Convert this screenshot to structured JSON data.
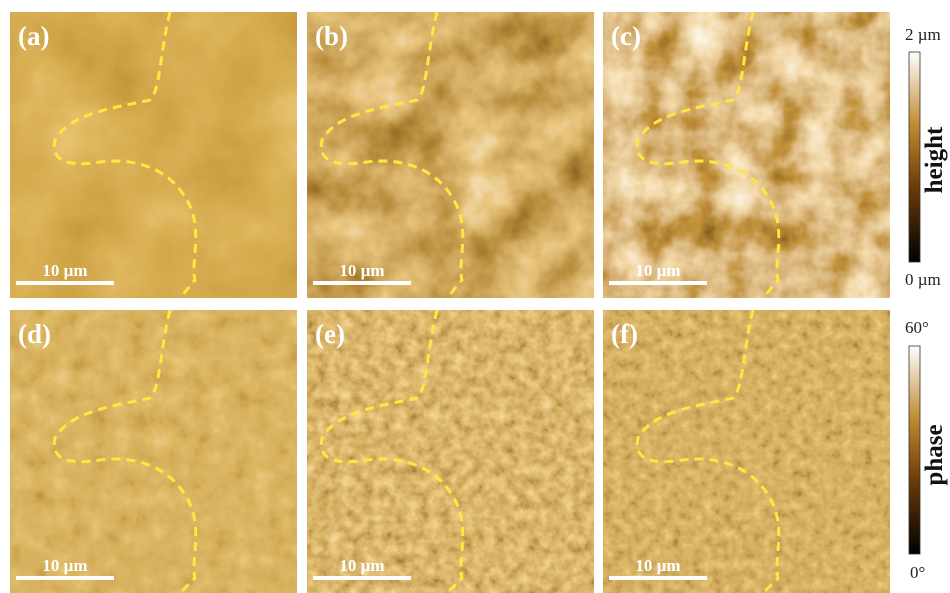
{
  "panels": [
    {
      "label": "(a)",
      "scale_bar": "10 µm"
    },
    {
      "label": "(b)",
      "scale_bar": "10 µm"
    },
    {
      "label": "(c)",
      "scale_bar": "10 µm"
    },
    {
      "label": "(d)",
      "scale_bar": "10 µm"
    },
    {
      "label": "(e)",
      "scale_bar": "10 µm"
    },
    {
      "label": "(f)",
      "scale_bar": "10 µm"
    }
  ],
  "colorbars": [
    {
      "title": "height",
      "max": "2 µm",
      "min": "0 µm"
    },
    {
      "title": "phase",
      "max": "60°",
      "min": "0°"
    }
  ]
}
